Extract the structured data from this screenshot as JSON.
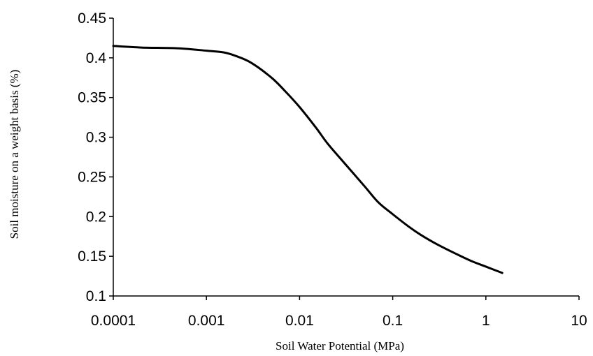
{
  "chart_data": {
    "type": "line",
    "title": "",
    "xlabel": "Soil Water Potential (MPa)",
    "ylabel": "Soil moisture on a weight basis (%)",
    "x_scale": "log",
    "xlim": [
      0.0001,
      10
    ],
    "ylim": [
      0.1,
      0.45
    ],
    "grid": false,
    "legend": "none",
    "x_ticks": [
      0.0001,
      0.001,
      0.01,
      0.1,
      1,
      10
    ],
    "x_tick_labels": [
      "0.0001",
      "0.001",
      "0.01",
      "0.1",
      "1",
      "10"
    ],
    "y_ticks": [
      0.1,
      0.15,
      0.2,
      0.25,
      0.3,
      0.35,
      0.4,
      0.45
    ],
    "y_tick_labels": [
      "0.1",
      "0.15",
      "0.2",
      "0.25",
      "0.3",
      "0.35",
      "0.4",
      "0.45"
    ],
    "series": [
      {
        "color": "#000000",
        "x": [
          0.0001,
          0.0002,
          0.0005,
          0.001,
          0.0015,
          0.002,
          0.003,
          0.005,
          0.007,
          0.01,
          0.015,
          0.02,
          0.03,
          0.05,
          0.07,
          0.1,
          0.15,
          0.2,
          0.3,
          0.5,
          0.7,
          1,
          1.5
        ],
        "y": [
          0.415,
          0.413,
          0.412,
          0.409,
          0.407,
          0.403,
          0.394,
          0.375,
          0.358,
          0.338,
          0.312,
          0.292,
          0.268,
          0.238,
          0.218,
          0.203,
          0.187,
          0.177,
          0.165,
          0.152,
          0.144,
          0.137,
          0.129
        ]
      }
    ]
  }
}
